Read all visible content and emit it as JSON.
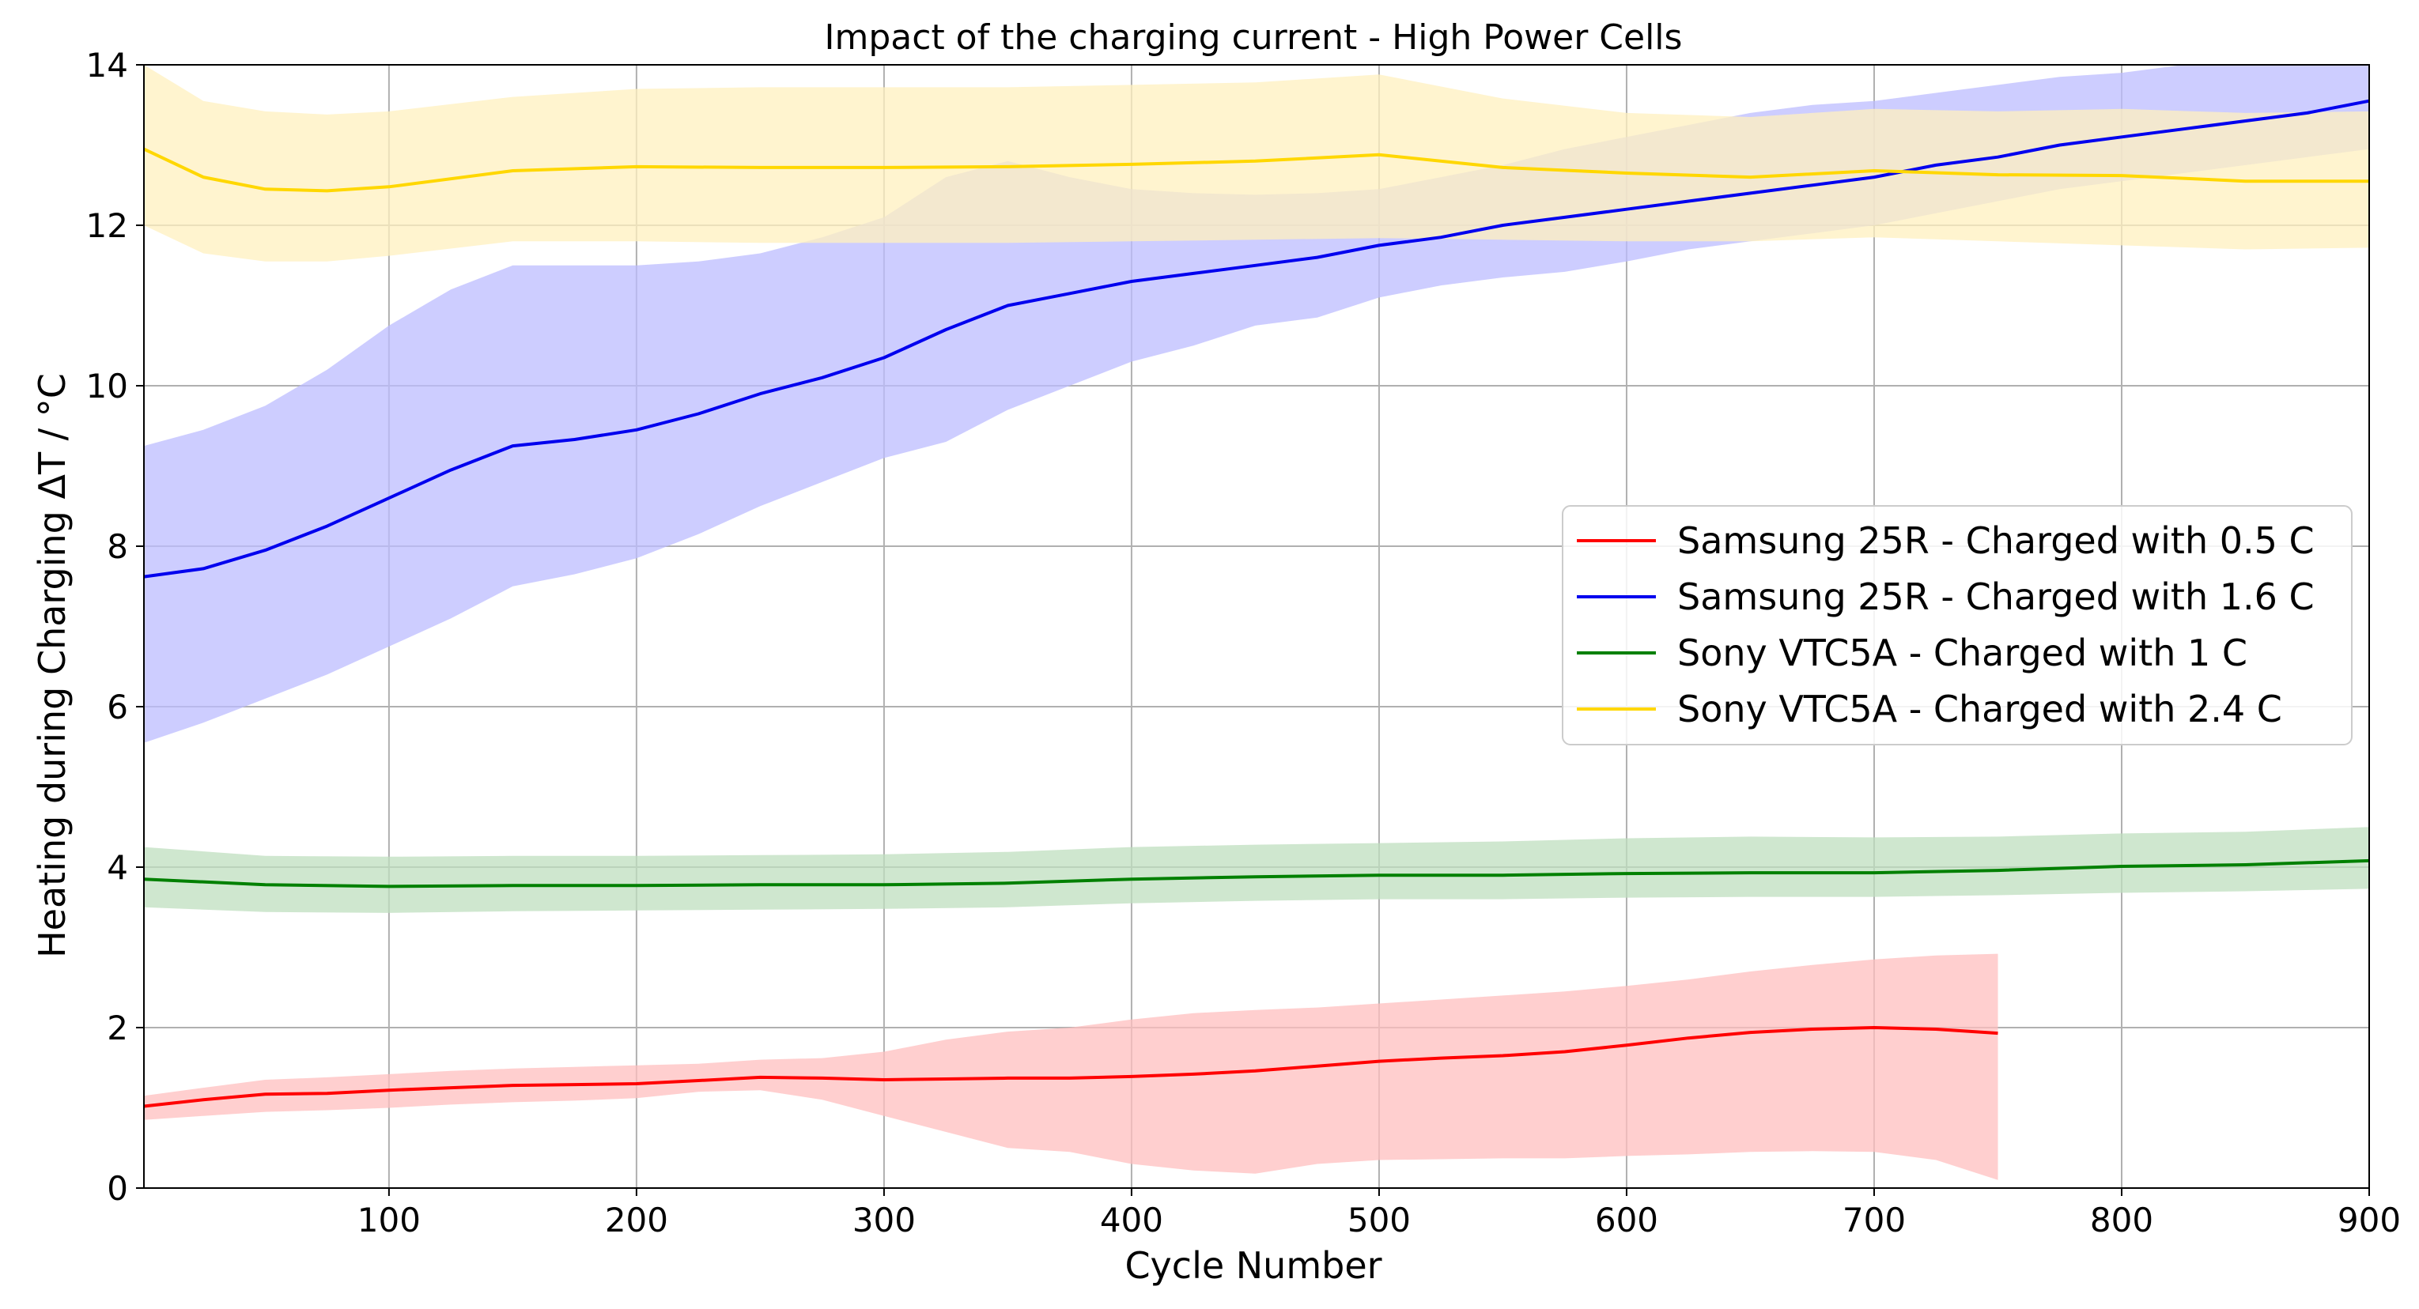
{
  "chart_data": {
    "type": "line",
    "title": "Impact of the charging current - High Power Cells",
    "xlabel": "Cycle Number",
    "ylabel": "Heating during Charging ΔT / °C",
    "xlim": [
      1,
      900
    ],
    "ylim": [
      0,
      14
    ],
    "xticks": [
      100,
      200,
      300,
      400,
      500,
      600,
      700,
      800,
      900
    ],
    "yticks": [
      0,
      2,
      4,
      6,
      8,
      10,
      12,
      14
    ],
    "grid": true,
    "legend_position": "center-right",
    "series": [
      {
        "name": "Samsung 25R - Charged with 0.5 C",
        "color": "#ff0000",
        "band_color": "#ffbfbf",
        "x": [
          1,
          25,
          50,
          75,
          100,
          125,
          150,
          175,
          200,
          225,
          250,
          275,
          300,
          325,
          350,
          375,
          400,
          425,
          450,
          475,
          500,
          525,
          550,
          575,
          600,
          625,
          650,
          675,
          700,
          725,
          750
        ],
        "y": [
          1.02,
          1.1,
          1.17,
          1.18,
          1.22,
          1.25,
          1.28,
          1.29,
          1.3,
          1.34,
          1.38,
          1.37,
          1.35,
          1.36,
          1.37,
          1.37,
          1.39,
          1.42,
          1.46,
          1.52,
          1.58,
          1.62,
          1.65,
          1.7,
          1.78,
          1.87,
          1.94,
          1.98,
          2.0,
          1.98,
          1.93
        ],
        "lower": [
          0.85,
          0.9,
          0.95,
          0.97,
          1.0,
          1.04,
          1.07,
          1.09,
          1.12,
          1.2,
          1.22,
          1.1,
          0.9,
          0.7,
          0.5,
          0.45,
          0.3,
          0.22,
          0.18,
          0.3,
          0.35,
          0.36,
          0.37,
          0.37,
          0.4,
          0.42,
          0.45,
          0.46,
          0.45,
          0.35,
          0.1
        ],
        "upper": [
          1.15,
          1.25,
          1.35,
          1.38,
          1.42,
          1.46,
          1.49,
          1.51,
          1.53,
          1.55,
          1.6,
          1.62,
          1.7,
          1.85,
          1.95,
          2.0,
          2.1,
          2.18,
          2.22,
          2.25,
          2.3,
          2.35,
          2.4,
          2.45,
          2.52,
          2.6,
          2.7,
          2.78,
          2.85,
          2.9,
          2.92
        ]
      },
      {
        "name": "Samsung 25R - Charged with 1.6 C",
        "color": "#0000ee",
        "band_color": "#bcbcff",
        "x": [
          1,
          25,
          50,
          75,
          100,
          125,
          150,
          175,
          200,
          225,
          250,
          275,
          300,
          325,
          350,
          375,
          400,
          425,
          450,
          475,
          500,
          525,
          550,
          575,
          600,
          625,
          650,
          675,
          700,
          725,
          750,
          775,
          800,
          825,
          850,
          875,
          900
        ],
        "y": [
          7.62,
          7.72,
          7.95,
          8.25,
          8.6,
          8.95,
          9.25,
          9.33,
          9.45,
          9.65,
          9.9,
          10.1,
          10.35,
          10.7,
          11.0,
          11.15,
          11.3,
          11.4,
          11.5,
          11.6,
          11.75,
          11.85,
          12.0,
          12.1,
          12.2,
          12.3,
          12.4,
          12.5,
          12.6,
          12.75,
          12.85,
          13.0,
          13.1,
          13.2,
          13.3,
          13.4,
          13.55
        ],
        "lower": [
          5.55,
          5.8,
          6.1,
          6.4,
          6.75,
          7.1,
          7.5,
          7.65,
          7.85,
          8.15,
          8.5,
          8.8,
          9.1,
          9.3,
          9.7,
          10.0,
          10.3,
          10.5,
          10.75,
          10.85,
          11.1,
          11.25,
          11.35,
          11.42,
          11.55,
          11.7,
          11.8,
          11.9,
          12.0,
          12.15,
          12.3,
          12.45,
          12.55,
          12.65,
          12.75,
          12.85,
          12.95
        ],
        "upper": [
          9.25,
          9.45,
          9.75,
          10.2,
          10.75,
          11.2,
          11.5,
          11.5,
          11.5,
          11.55,
          11.65,
          11.85,
          12.1,
          12.6,
          12.8,
          12.6,
          12.45,
          12.4,
          12.38,
          12.4,
          12.45,
          12.6,
          12.75,
          12.95,
          13.1,
          13.25,
          13.4,
          13.5,
          13.55,
          13.65,
          13.75,
          13.85,
          13.9,
          14.0,
          14.0,
          14.0,
          14.0
        ]
      },
      {
        "name": "Sony VTC5A - Charged with 1 C",
        "color": "#008000",
        "band_color": "#bfdfbf",
        "x": [
          1,
          50,
          100,
          150,
          200,
          250,
          300,
          350,
          400,
          450,
          500,
          550,
          600,
          650,
          700,
          750,
          800,
          850,
          900
        ],
        "y": [
          3.85,
          3.78,
          3.76,
          3.77,
          3.77,
          3.78,
          3.78,
          3.8,
          3.85,
          3.88,
          3.9,
          3.9,
          3.92,
          3.93,
          3.93,
          3.96,
          4.01,
          4.03,
          4.08
        ],
        "lower": [
          3.5,
          3.44,
          3.43,
          3.45,
          3.46,
          3.47,
          3.48,
          3.5,
          3.55,
          3.58,
          3.6,
          3.6,
          3.62,
          3.63,
          3.63,
          3.65,
          3.68,
          3.7,
          3.73
        ],
        "upper": [
          4.25,
          4.14,
          4.13,
          4.14,
          4.14,
          4.15,
          4.16,
          4.19,
          4.25,
          4.28,
          4.3,
          4.32,
          4.36,
          4.38,
          4.37,
          4.38,
          4.42,
          4.44,
          4.5
        ]
      },
      {
        "name": "Sony VTC5A - Charged with 2.4 C",
        "color": "#ffd700",
        "band_color": "#fff0bf",
        "x": [
          1,
          25,
          50,
          75,
          100,
          150,
          200,
          250,
          300,
          350,
          400,
          450,
          500,
          550,
          600,
          650,
          700,
          750,
          800,
          850,
          900
        ],
        "y": [
          12.95,
          12.6,
          12.45,
          12.43,
          12.48,
          12.68,
          12.73,
          12.72,
          12.72,
          12.73,
          12.76,
          12.8,
          12.88,
          12.72,
          12.65,
          12.6,
          12.68,
          12.63,
          12.62,
          12.55,
          12.55
        ],
        "lower": [
          12.0,
          11.65,
          11.55,
          11.55,
          11.62,
          11.8,
          11.8,
          11.78,
          11.78,
          11.78,
          11.8,
          11.82,
          11.84,
          11.82,
          11.8,
          11.8,
          11.85,
          11.8,
          11.75,
          11.7,
          11.72
        ],
        "upper": [
          14.0,
          13.55,
          13.42,
          13.38,
          13.42,
          13.6,
          13.7,
          13.72,
          13.72,
          13.72,
          13.75,
          13.78,
          13.88,
          13.58,
          13.4,
          13.35,
          13.45,
          13.42,
          13.45,
          13.4,
          13.42
        ]
      }
    ]
  }
}
